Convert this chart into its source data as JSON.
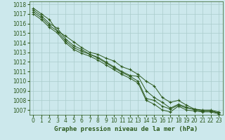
{
  "title": "Graphe pression niveau de la mer (hPa)",
  "background_color": "#cce8ec",
  "grid_color": "#aacccc",
  "line_color": "#2d5a1e",
  "xlim": [
    -0.5,
    23.5
  ],
  "ylim": [
    1006.5,
    1018.3
  ],
  "xticks": [
    0,
    1,
    2,
    3,
    4,
    5,
    6,
    7,
    8,
    9,
    10,
    11,
    12,
    13,
    14,
    15,
    16,
    17,
    18,
    19,
    20,
    21,
    22,
    23
  ],
  "yticks": [
    1007,
    1008,
    1009,
    1010,
    1011,
    1012,
    1013,
    1014,
    1015,
    1016,
    1017,
    1018
  ],
  "series": [
    [
      1017.6,
      1017.0,
      1016.4,
      1015.2,
      1014.7,
      1014.1,
      1013.5,
      1013.0,
      1012.8,
      1012.4,
      1012.1,
      1011.5,
      1011.2,
      1010.7,
      1010.0,
      1009.5,
      1008.3,
      1007.8,
      1008.0,
      1007.5,
      1007.1,
      1007.0,
      1007.0,
      1006.8
    ],
    [
      1017.4,
      1016.8,
      1016.0,
      1015.5,
      1014.4,
      1013.7,
      1013.3,
      1012.8,
      1012.5,
      1012.0,
      1011.5,
      1011.0,
      1010.6,
      1010.5,
      1009.0,
      1008.3,
      1007.8,
      1007.2,
      1007.6,
      1007.3,
      1007.0,
      1006.9,
      1006.9,
      1006.7
    ],
    [
      1017.2,
      1016.6,
      1015.8,
      1015.2,
      1014.2,
      1013.5,
      1013.1,
      1012.8,
      1012.4,
      1011.9,
      1011.4,
      1010.9,
      1010.5,
      1010.0,
      1008.2,
      1008.0,
      1007.4,
      1007.1,
      1007.5,
      1007.2,
      1007.1,
      1006.9,
      1006.9,
      1006.7
    ],
    [
      1017.0,
      1016.4,
      1015.6,
      1015.0,
      1014.0,
      1013.3,
      1012.9,
      1012.6,
      1012.2,
      1011.7,
      1011.2,
      1010.7,
      1010.3,
      1009.8,
      1008.0,
      1007.6,
      1007.0,
      1006.8,
      1007.4,
      1007.0,
      1006.9,
      1006.8,
      1006.8,
      1006.6
    ]
  ],
  "tick_fontsize": 5.5,
  "label_fontsize": 6.5
}
